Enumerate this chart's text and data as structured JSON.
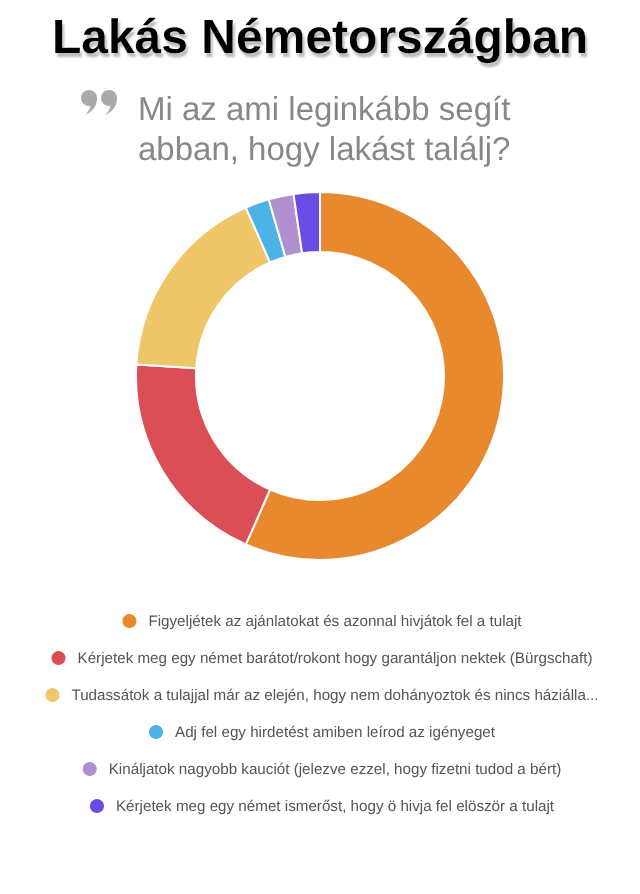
{
  "chart_data": {
    "type": "donut",
    "title": "Lakás Németországban",
    "subtitle": "Mi az ami leginkább segít abban, hogy lakást találj?",
    "categories": [
      "Figyeljétek az ajánlatokat és azonnal hivjátok fel a tulajt",
      "Kérjetek meg egy német barátot/rokont hogy garantáljon nektek (Bürgschaft)",
      "Tudassátok a tulajjal már az elején, hogy nem dohányoztok és nincs háziálla...",
      "Adj fel egy hirdetést amiben leírod az igényeget",
      "Kináljatok nagyobb kauciót (jelezve ezzel, hogy fizetni tudod a bért)",
      "Kérjetek meg egy német ismerőst, hogy ö hivja fel elöször a tulajt"
    ],
    "values": [
      56.6,
      19.4,
      17.4,
      2.1,
      2.2,
      2.3
    ],
    "colors": [
      "#e8892e",
      "#dc4e55",
      "#efc768",
      "#4db3e6",
      "#b08fd0",
      "#6b4be6"
    ],
    "legend": "bottom"
  }
}
